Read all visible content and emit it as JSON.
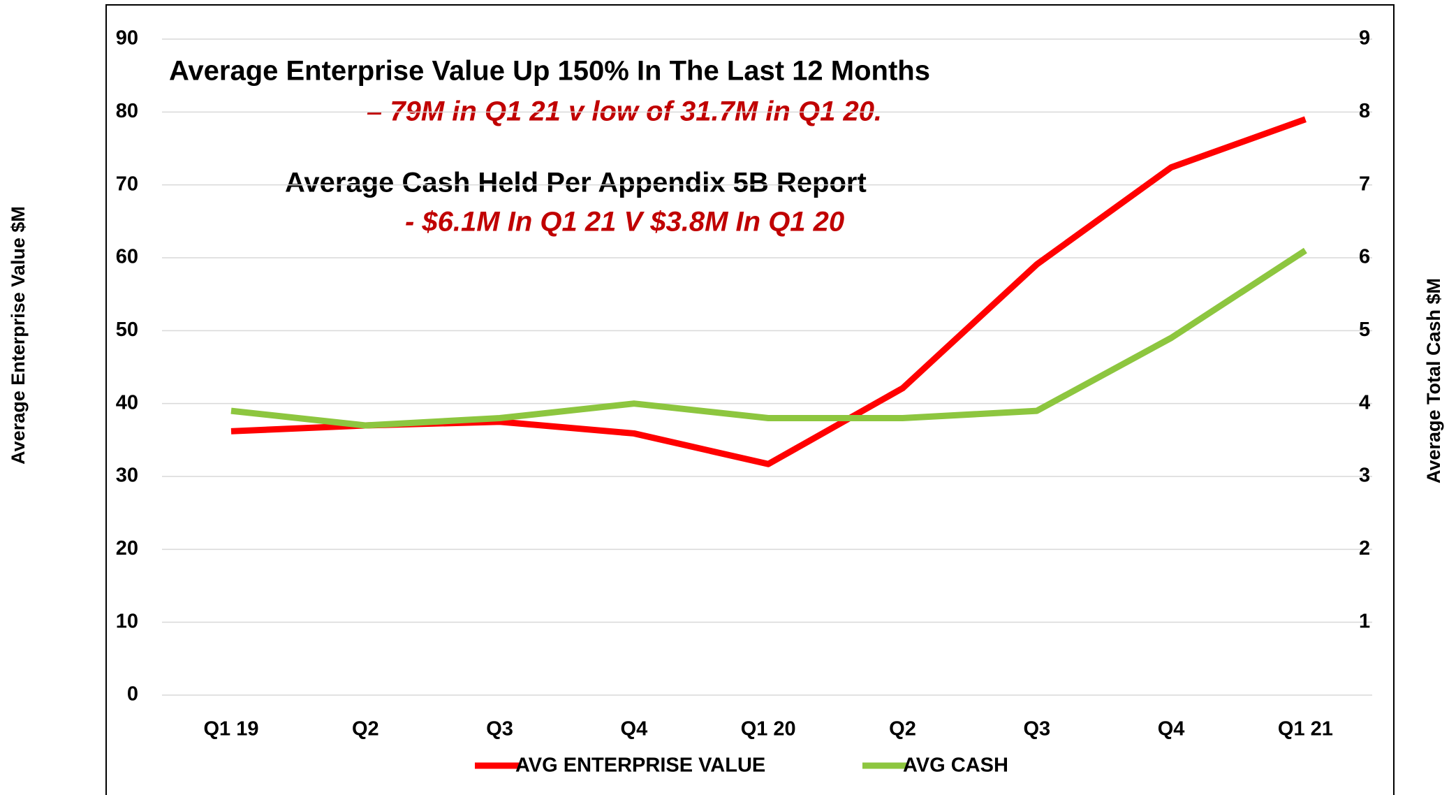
{
  "chart_data": {
    "type": "line",
    "categories": [
      "Q1 19",
      "Q2",
      "Q3",
      "Q4",
      "Q1 20",
      "Q2",
      "Q3",
      "Q4",
      "Q1 21"
    ],
    "series": [
      {
        "name": "AVG ENTERPRISE VALUE",
        "color": "#ff0000",
        "values": [
          36.2,
          37.0,
          37.5,
          35.9,
          31.7,
          42.1,
          59.1,
          72.4,
          79
        ]
      },
      {
        "name": "AVG CASH",
        "color": "#8dc63f",
        "axis": "y2",
        "values": [
          3.9,
          3.7,
          3.8,
          4.0,
          3.8,
          3.8,
          3.9,
          4.9,
          6.1
        ]
      }
    ],
    "ylabel": "Average Enterprise Value $M",
    "y2label": "Average Total Cash  $M",
    "ylim": [
      0,
      90
    ],
    "yticks": [
      0,
      10,
      20,
      30,
      40,
      50,
      60,
      70,
      80,
      90
    ],
    "y2lim": [
      0,
      9
    ],
    "y2ticks": [
      1,
      2,
      3,
      4,
      5,
      6,
      7,
      8,
      9
    ],
    "grid": true,
    "legend": "bottom",
    "annotations": [
      "Average Enterprise Value Up 150% In The Last 12 Months",
      "– 79M in Q1 21 v low of 31.7M in Q1 20.",
      "Average Cash Held Per Appendix 5B Report",
      "- $6.1M In Q1 21 V $3.8M In Q1 20"
    ]
  }
}
